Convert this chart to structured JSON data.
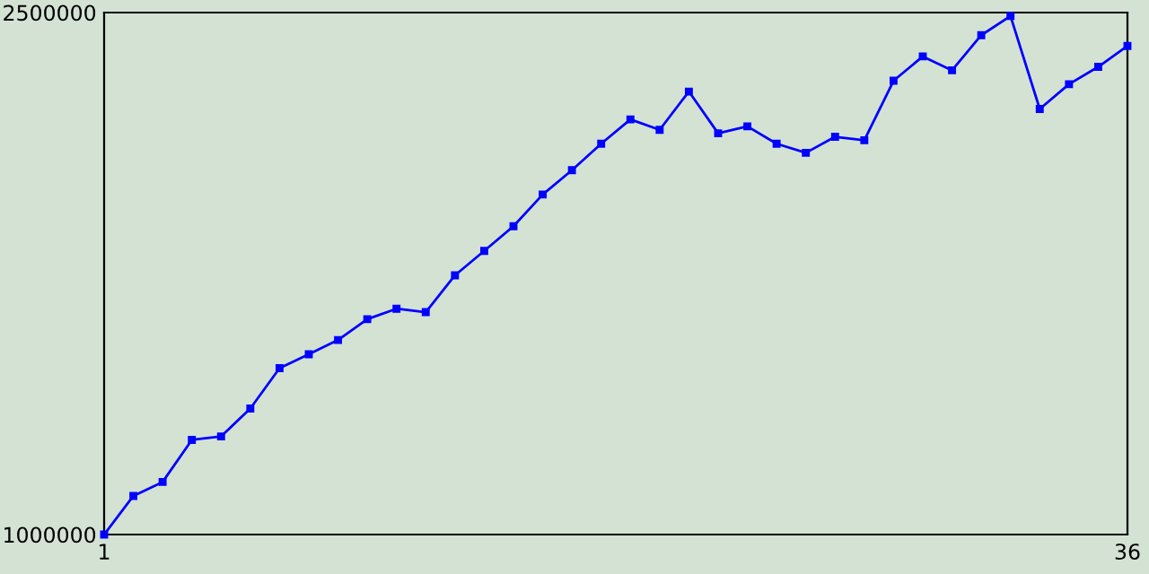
{
  "chart_data": {
    "type": "line",
    "x": [
      1,
      2,
      3,
      4,
      5,
      6,
      7,
      8,
      9,
      10,
      11,
      12,
      13,
      14,
      15,
      16,
      17,
      18,
      19,
      20,
      21,
      22,
      23,
      24,
      25,
      26,
      27,
      28,
      29,
      30,
      31,
      32,
      33,
      34,
      35,
      36
    ],
    "series": [
      {
        "color": "#0000ff",
        "values": [
          1000000,
          1111000,
          1151000,
          1272000,
          1282000,
          1362000,
          1478000,
          1518000,
          1559000,
          1619000,
          1649000,
          1639000,
          1745000,
          1815000,
          1886000,
          1977000,
          2047000,
          2123000,
          2193000,
          2163000,
          2273000,
          2153000,
          2173000,
          2123000,
          2097000,
          2143000,
          2133000,
          2304000,
          2374000,
          2334000,
          2435000,
          2490000,
          2223000,
          2294000,
          2344000,
          2404000
        ]
      }
    ],
    "xlim": [
      1,
      36
    ],
    "xticks": [
      1,
      36
    ],
    "ylim": [
      1000000,
      2500000
    ],
    "yticks": [
      1000000,
      2500000
    ],
    "marker": "square",
    "line_style": "solid",
    "grid": false,
    "legend": false
  }
}
